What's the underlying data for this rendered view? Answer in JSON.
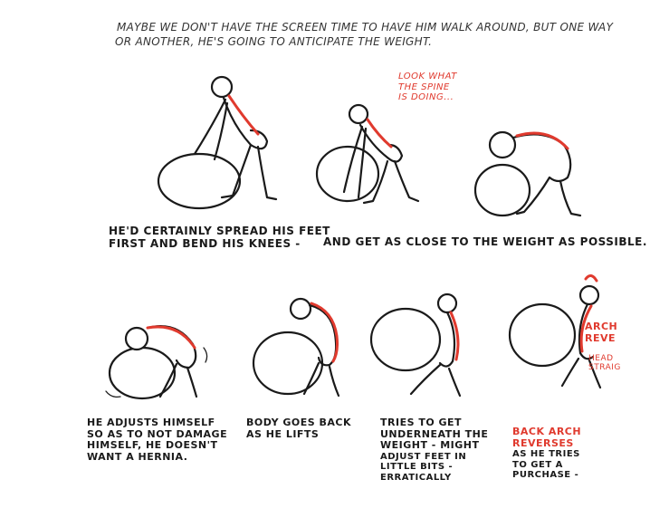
{
  "intro": {
    "line1": "MAYBE WE DON'T HAVE the SCREEN TIME TO HAVE HIM WALK AROUND, BUT ONE WAY",
    "line2": "OR ANOTHER, HE'S GOING TO ANTICIPATE the WEIGHT."
  },
  "notes": {
    "spine": [
      "LOOK WHAT",
      "THE SPINE",
      "IS DOING..."
    ],
    "arch": [
      "ARCH",
      "REVE"
    ],
    "head": [
      "HEAD",
      "STRAIG"
    ]
  },
  "captions": {
    "row1_left": [
      "HE'D CERTAINLY SPREAD HIS FEET",
      "FIRST AND BEND HIS KNEES -"
    ],
    "row1_right": [
      "AND GET AS CLOSE TO the WEIGHT AS POSSIBLE."
    ],
    "panel5": [
      "HE ADJUSTS HIMSELF",
      "SO AS TO NOT DAMAGE",
      "HIMSELF, HE DOESN'T",
      "WANT A HERNIA."
    ],
    "panel6": [
      "BODY GOES BACK",
      "AS HE LIFTS"
    ],
    "panel7": [
      "TRIES TO GET",
      "UNDERNEATH the",
      "WEIGHT - MIGHT",
      "ADJUST FEET IN",
      "LITTLE BITS -",
      "ERRATICALLY"
    ],
    "panel8_red": [
      "BACK ARCH",
      "REVERSES"
    ],
    "panel8": [
      "AS HE TRIES",
      "TO GET A",
      "PURCHASE -"
    ]
  },
  "colors": {
    "ink": "#1a1a1a",
    "accent": "#e03a2e",
    "paper": "#ffffff"
  }
}
